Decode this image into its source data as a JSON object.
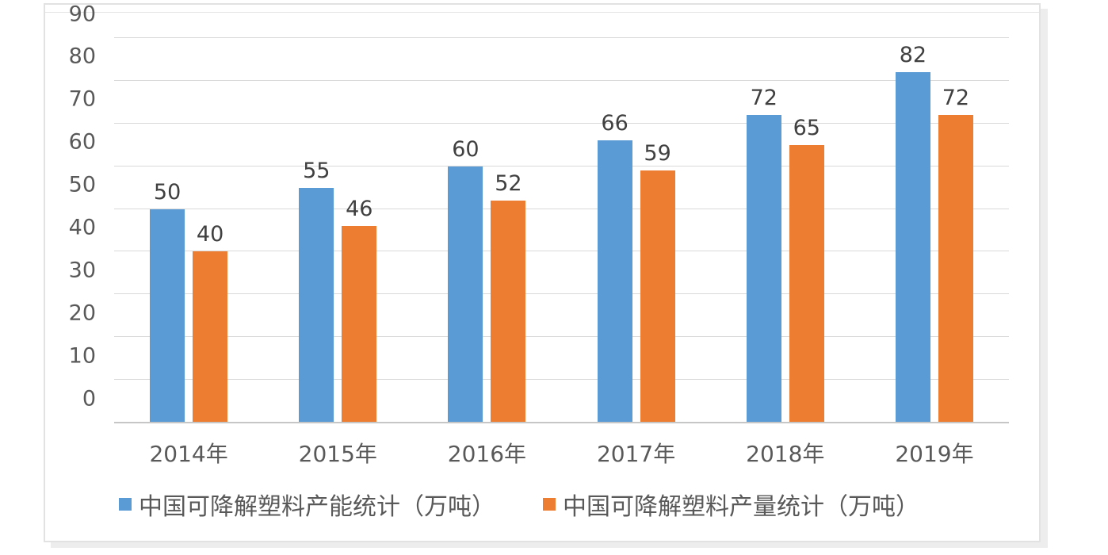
{
  "chart_data": {
    "type": "bar",
    "categories": [
      "2014年",
      "2015年",
      "2016年",
      "2017年",
      "2018年",
      "2019年"
    ],
    "series": [
      {
        "name": "中国可降解塑料产能统计（万吨）",
        "color": "#5B9BD5",
        "values": [
          50,
          55,
          60,
          66,
          72,
          82
        ]
      },
      {
        "name": "中国可降解塑料产量统计（万吨）",
        "color": "#ED7D31",
        "values": [
          40,
          46,
          52,
          59,
          65,
          72
        ]
      }
    ],
    "y_ticks": [
      0,
      10,
      20,
      30,
      40,
      50,
      60,
      70,
      80,
      90
    ],
    "ylim": [
      0,
      90
    ],
    "title": "",
    "xlabel": "",
    "ylabel": "",
    "grid": true,
    "legend_position": "bottom",
    "data_labels_shown": true
  },
  "colors": {
    "series_capacity": "#5B9BD5",
    "series_output": "#ED7D31",
    "gridline": "#d9d9d9",
    "axis_line": "#c6c6c6",
    "tick_text": "#595959",
    "data_label_text": "#404040",
    "frame_border": "#e2e2e2",
    "background": "#ffffff"
  }
}
